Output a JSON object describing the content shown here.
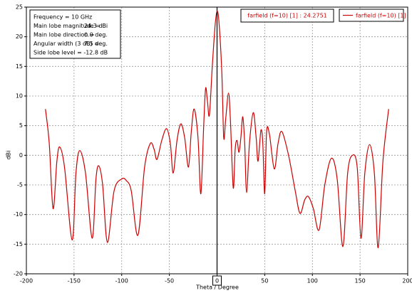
{
  "chart_data": {
    "type": "line",
    "x_label": "Theta / Degree",
    "y_label": "dBi",
    "xlim": [
      -200,
      200
    ],
    "ylim": [
      -20,
      25
    ],
    "xticks": [
      -200,
      -150,
      -100,
      -50,
      0,
      50,
      100,
      150,
      200
    ],
    "yticks": [
      -20,
      -15,
      -10,
      -5,
      0,
      5,
      10,
      15,
      20,
      25
    ],
    "grid": true,
    "legend": "top-right",
    "marker": 0,
    "annotation": "farfield (f=10) [1] : 24.2751",
    "info": [
      [
        "Frequency = 10 GHz"
      ],
      [
        "Main lobe magnitude =",
        "24.3 dBi"
      ],
      [
        "Main lobe direction =",
        "0.0 deg."
      ],
      [
        "Angular width (3 dB) =",
        "7.5 deg."
      ],
      [
        "Side lobe level =  -12.8 dB"
      ]
    ],
    "x": [
      -180,
      -176,
      -172,
      -168,
      -165,
      -160,
      -152,
      -148,
      -144,
      -138,
      -131,
      -127,
      -124,
      -120,
      -115,
      -108,
      -100,
      -95,
      -90,
      -83,
      -76,
      -70,
      -66,
      -63,
      -58,
      -53,
      -49,
      -46,
      -42,
      -38,
      -34,
      -30,
      -27,
      -24,
      -20,
      -17,
      -14,
      -12,
      -10,
      -8,
      -5,
      -2,
      0,
      2,
      5,
      7,
      9,
      12,
      14,
      17,
      19,
      21,
      23,
      25,
      27,
      29,
      31,
      34,
      38,
      41,
      43,
      46,
      48,
      50,
      52,
      55,
      60,
      64,
      68,
      75,
      82,
      87,
      92,
      96,
      101,
      107,
      113,
      120,
      126,
      132,
      137,
      142,
      147,
      151,
      155,
      160,
      165,
      169,
      174,
      180
    ],
    "series": [
      {
        "name": "farfield (f=10) [1]",
        "color": "#cc0000",
        "values": [
          7.8,
          2,
          -9,
          -1,
          1.4,
          -2,
          -14.3,
          -3,
          0.8,
          -3,
          -14,
          -4,
          -1.8,
          -5,
          -14.7,
          -6,
          -4,
          -4.3,
          -6,
          -13.5,
          -2,
          2,
          1,
          -0.7,
          2.5,
          4.5,
          2,
          -3,
          2.5,
          5.3,
          3,
          -2,
          4,
          7.8,
          3,
          -6.5,
          5,
          11.3,
          9,
          6.8,
          15,
          22,
          24.3,
          22.5,
          14,
          3,
          6,
          10.5,
          6,
          -5.5,
          1,
          2.5,
          0.5,
          3,
          6.5,
          2,
          -6.3,
          2,
          7.2,
          3,
          -1,
          4.2,
          2,
          -6.5,
          4,
          3.5,
          -2.3,
          2,
          4,
          0,
          -6,
          -9.8,
          -7.5,
          -7,
          -9,
          -12.6,
          -5,
          -0.5,
          -4,
          -15.4,
          -3,
          0,
          -2,
          -14,
          -3,
          1.8,
          -3,
          -15.6,
          -1,
          7.8
        ]
      }
    ]
  }
}
